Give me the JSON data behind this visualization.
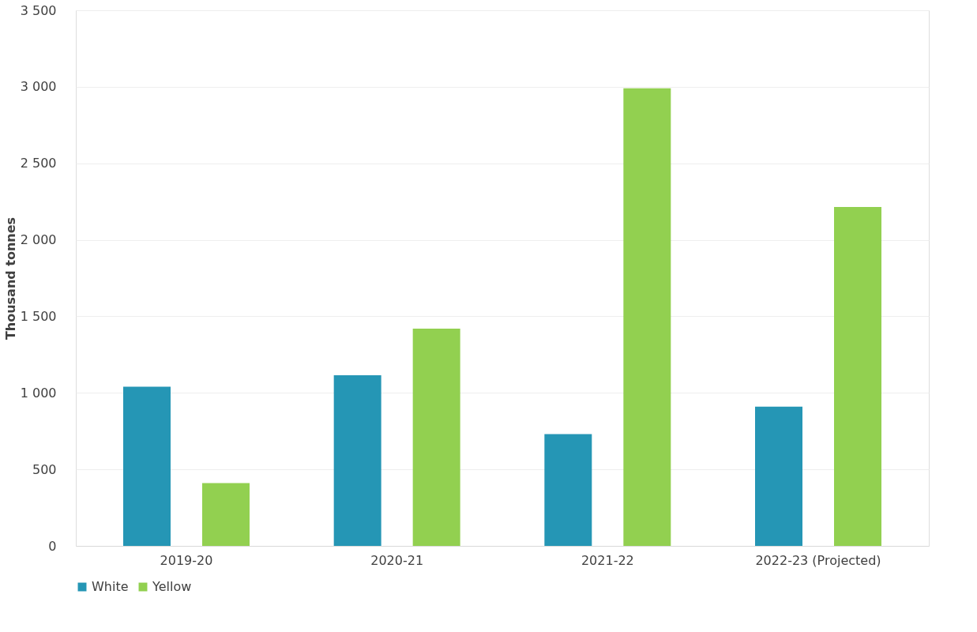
{
  "chart_data": {
    "type": "bar",
    "ylabel": "Thousand tonnes",
    "categories": [
      "2019-20",
      "2020-21",
      "2021-22",
      "2022-23 (Projected)"
    ],
    "series": [
      {
        "name": "White",
        "color": "#2596b5",
        "values": [
          1040,
          1115,
          730,
          910
        ]
      },
      {
        "name": "Yellow",
        "color": "#92d050",
        "values": [
          410,
          1420,
          2990,
          2215
        ]
      }
    ],
    "ylim": [
      0,
      3500
    ],
    "yticks": [
      0,
      500,
      {
        "value": 1000,
        "label": "1 000"
      },
      {
        "value": 1500,
        "label": "1 500"
      },
      {
        "value": 2000,
        "label": "2 000"
      },
      {
        "value": 2500,
        "label": "2 500"
      },
      {
        "value": 3000,
        "label": "3 000"
      },
      {
        "value": 3500,
        "label": "3 500"
      }
    ],
    "grid": "y",
    "legend": "bottom"
  }
}
